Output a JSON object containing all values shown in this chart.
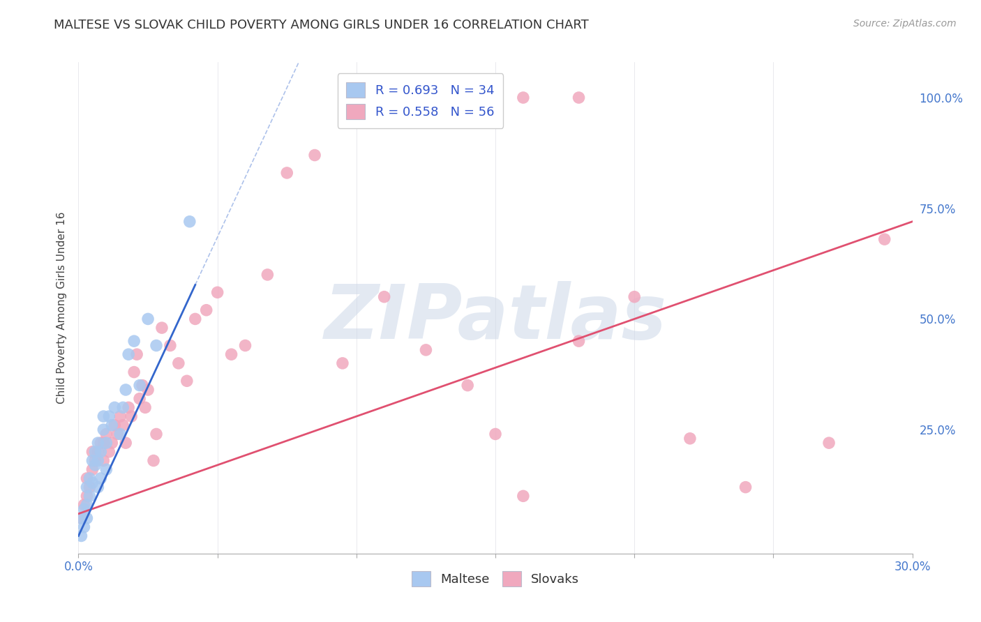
{
  "title": "MALTESE VS SLOVAK CHILD POVERTY AMONG GIRLS UNDER 16 CORRELATION CHART",
  "source": "Source: ZipAtlas.com",
  "ylabel": "Child Poverty Among Girls Under 16",
  "legend_r1": "R = 0.693",
  "legend_n1": "N = 34",
  "legend_r2": "R = 0.558",
  "legend_n2": "N = 56",
  "legend_label1": "Maltese",
  "legend_label2": "Slovaks",
  "maltese_color": "#a8c8f0",
  "slovak_color": "#f0a8be",
  "maltese_line_color": "#3366cc",
  "slovak_line_color": "#e05070",
  "watermark": "ZIPatlas",
  "watermark_color": "#ccd8e8",
  "maltese_x": [
    0.001,
    0.002,
    0.002,
    0.003,
    0.003,
    0.003,
    0.004,
    0.004,
    0.005,
    0.005,
    0.006,
    0.006,
    0.007,
    0.007,
    0.007,
    0.008,
    0.008,
    0.009,
    0.009,
    0.01,
    0.01,
    0.011,
    0.012,
    0.013,
    0.015,
    0.016,
    0.017,
    0.018,
    0.02,
    0.022,
    0.025,
    0.028,
    0.04,
    0.001
  ],
  "maltese_y": [
    0.05,
    0.03,
    0.07,
    0.05,
    0.08,
    0.12,
    0.1,
    0.14,
    0.13,
    0.18,
    0.17,
    0.2,
    0.12,
    0.18,
    0.22,
    0.14,
    0.2,
    0.25,
    0.28,
    0.16,
    0.22,
    0.28,
    0.26,
    0.3,
    0.24,
    0.3,
    0.34,
    0.42,
    0.45,
    0.35,
    0.5,
    0.44,
    0.72,
    0.01
  ],
  "slovak_x": [
    0.001,
    0.002,
    0.003,
    0.003,
    0.004,
    0.005,
    0.005,
    0.006,
    0.007,
    0.008,
    0.009,
    0.009,
    0.01,
    0.011,
    0.012,
    0.013,
    0.014,
    0.015,
    0.016,
    0.017,
    0.018,
    0.019,
    0.02,
    0.021,
    0.022,
    0.023,
    0.024,
    0.025,
    0.027,
    0.028,
    0.03,
    0.033,
    0.036,
    0.039,
    0.042,
    0.046,
    0.05,
    0.055,
    0.06,
    0.068,
    0.075,
    0.085,
    0.095,
    0.11,
    0.125,
    0.14,
    0.16,
    0.18,
    0.2,
    0.22,
    0.15,
    0.18,
    0.24,
    0.27,
    0.29,
    0.16
  ],
  "slovak_y": [
    0.05,
    0.08,
    0.1,
    0.14,
    0.12,
    0.16,
    0.2,
    0.18,
    0.2,
    0.22,
    0.18,
    0.22,
    0.24,
    0.2,
    0.22,
    0.26,
    0.24,
    0.28,
    0.26,
    0.22,
    0.3,
    0.28,
    0.38,
    0.42,
    0.32,
    0.35,
    0.3,
    0.34,
    0.18,
    0.24,
    0.48,
    0.44,
    0.4,
    0.36,
    0.5,
    0.52,
    0.56,
    0.42,
    0.44,
    0.6,
    0.83,
    0.87,
    0.4,
    0.55,
    0.43,
    0.35,
    1.0,
    1.0,
    0.55,
    0.23,
    0.24,
    0.45,
    0.12,
    0.22,
    0.68,
    0.1
  ],
  "xlim": [
    0.0,
    0.3
  ],
  "ylim": [
    -0.03,
    1.08
  ],
  "yticks_right": [
    0.0,
    0.25,
    0.5,
    0.75,
    1.0
  ],
  "yticklabels_right": [
    "",
    "25.0%",
    "50.0%",
    "75.0%",
    "100.0%"
  ],
  "xtick_positions": [
    0.0,
    0.05,
    0.1,
    0.15,
    0.2,
    0.25,
    0.3
  ],
  "grid_color": "#e0e0e8",
  "bg_color": "#ffffff",
  "maltese_reg_slope": 13.5,
  "maltese_reg_intercept": 0.01,
  "slovak_reg_slope": 2.2,
  "slovak_reg_intercept": 0.06
}
